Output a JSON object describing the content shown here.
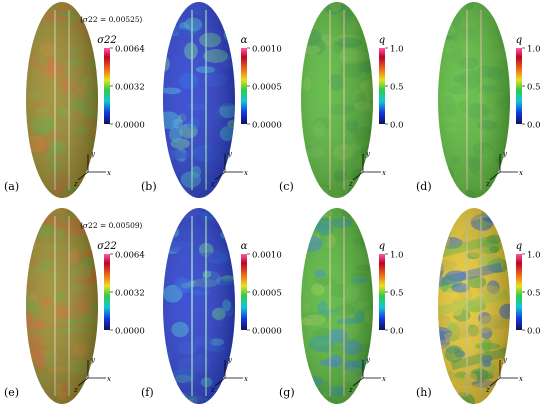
{
  "panels": [
    {
      "id": "a",
      "label": "(a)",
      "bar_title": "σ22",
      "avg_note": "⟨σ22 = 0.00525⟩",
      "ticks": [
        "0.0064",
        "0.0032",
        "0.0000"
      ],
      "scheme": "stress",
      "axis": {
        "y": "y",
        "x": "x",
        "z": "z"
      }
    },
    {
      "id": "b",
      "label": "(b)",
      "bar_title": "α",
      "ticks": [
        "0.0010",
        "0.0005",
        "0.0000"
      ],
      "scheme": "alpha_low",
      "axis": {
        "y": "y",
        "x": "x",
        "z": "z"
      }
    },
    {
      "id": "c",
      "label": "(c)",
      "bar_title": "q",
      "ticks": [
        "1.0",
        "0.5",
        "0.0"
      ],
      "scheme": "q_green",
      "axis": {
        "y": "y",
        "x": "x",
        "z": "z"
      }
    },
    {
      "id": "d",
      "label": "(d)",
      "bar_title": "q",
      "ticks": [
        "1.0",
        "0.5",
        "0.0"
      ],
      "scheme": "q_green_smooth",
      "axis": {
        "y": "y",
        "x": "x",
        "z": "z"
      }
    },
    {
      "id": "e",
      "label": "(e)",
      "bar_title": "σ22",
      "avg_note": "⟨σ22 = 0.00509⟩",
      "ticks": [
        "0.0064",
        "0.0032",
        "0.0000"
      ],
      "scheme": "stress",
      "axis": {
        "y": "y",
        "x": "x",
        "z": "z"
      }
    },
    {
      "id": "f",
      "label": "(f)",
      "bar_title": "α",
      "ticks": [
        "0.0010",
        "0.0005",
        "0.0000"
      ],
      "scheme": "alpha_low",
      "axis": {
        "y": "y",
        "x": "x",
        "z": "z"
      }
    },
    {
      "id": "g",
      "label": "(g)",
      "bar_title": "q",
      "ticks": [
        "1.0",
        "0.5",
        "0.0"
      ],
      "scheme": "q_mixed",
      "axis": {
        "y": "y",
        "x": "x",
        "z": "z"
      }
    },
    {
      "id": "h",
      "label": "(h)",
      "bar_title": "q",
      "ticks": [
        "1.0",
        "0.5",
        "0.0"
      ],
      "scheme": "q_mixed_bands",
      "axis": {
        "y": "y",
        "x": "x",
        "z": "z"
      }
    }
  ],
  "colors": {
    "bar_top": "#b0001a",
    "bar_mid": "#2ec94a",
    "bar_bottom": "#1a20c8",
    "stress_base": "#9a8a2c",
    "alpha_base": "#2a3fd0",
    "q_base": "#58b83a",
    "axis": "#000000"
  }
}
